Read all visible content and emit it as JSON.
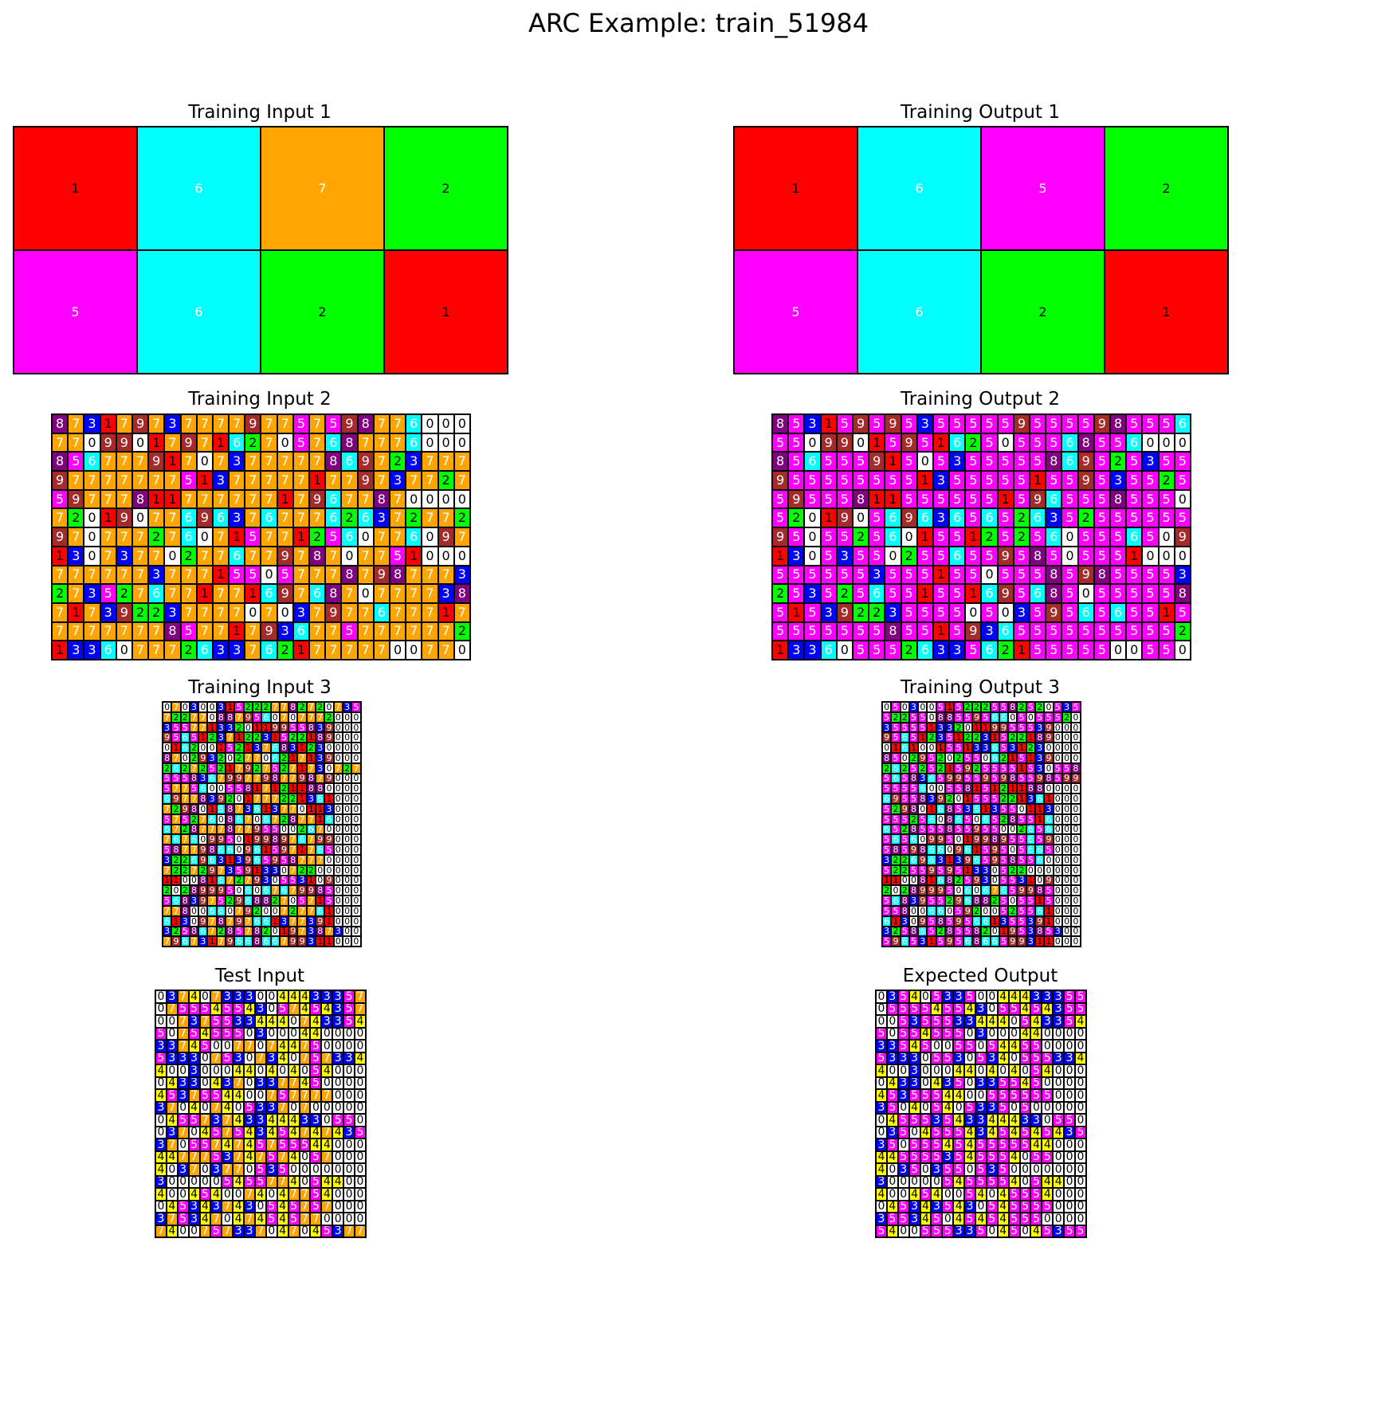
{
  "title": "ARC Example: train_51984",
  "palette": {
    "0": "#ffffff",
    "1": "#ff0000",
    "2": "#00ff00",
    "3": "#0000ff",
    "4": "#ffff00",
    "5": "#ff00ff",
    "6": "#00ffff",
    "7": "#ffa500",
    "8": "#800080",
    "9": "#a52a2a"
  },
  "panels": [
    {
      "title": "Training Input 1",
      "rows": [
        "1672",
        "5621"
      ]
    },
    {
      "title": "Training Output 1",
      "rows": [
        "1652",
        "5621"
      ]
    },
    {
      "title": "Training Input 2",
      "rows": [
        "87317973777797757598776",
        "77099017971627057687776",
        "85677791707377777869723777",
        "97777777513777771779737727",
        "59777811777777179677870",
        "72019077696376777626372772",
        "97077727607157712560776097",
        "13073770277677978707751",
        "77777737771550577787987773",
        "27352767717716976870777738",
        "71739223777707037977677717",
        "77777778577179367757777772",
        "13360777263376217777700770"
      ]
    },
    {
      "title": "Training Output 2",
      "rows": [
        "85315959535555595555985556",
        "55099015951625055568556",
        "85655591505355555869525355",
        "95555555513555551559535525",
        "59555811555555159655585550",
        "52019056963656526352555555",
        "95055256015512525605556509",
        "13053550255655958505551",
        "55555535551550555859855553",
        "25352565515516956850555558",
        "51539223555505035956565515",
        "55555558551593655555555552",
        "13360555263356215555500550"
      ]
    },
    {
      "title": "Training Input 3",
      "rows": [
        "0703003152227782720735",
        "7227708879560707772",
        "3557713320119955839",
        "9565123712231522189",
        "0162001521376831230",
        "8702932027706217139",
        "2627252179275271730727",
        "5558367997798779879",
        "5775600558171211880",
        "6977839201777221361",
        "7298016873613770113",
        "5752760867067287716",
        "6728777877955002670",
        "7676099501998976799",
        "5877986609615971765",
        "3226963139659587770",
        "72272973591330722",
        "11008167279305531090",
        "2028999506067679985",
        "5683975296882705715",
        "7780066079200727761",
        "6130978797661377391",
        "32586728578201973873",
        "7967317966866799311"
      ]
    },
    {
      "title": "Training Output 3",
      "rows": [
        "0503005152225582520535",
        "5225508855956605055520",
        "3555513320119955539",
        "9565123512231522189",
        "0161001551336531230",
        "8502952025506215139",
        "2625252159255551530558",
        "5658365995595985598599",
        "5555600558151211880",
        "6955839201555221361",
        "5298016853613550113",
        "5552560865065285516",
        "6528555855955002656",
        "5656099501998955659",
        "5859866096159505665",
        "3226963139659585560",
        "5225595951330522",
        "11008168259305531090",
        "2028999506067659985",
        "5683955296882505515",
        "5580066059200525561",
        "6130958595661355391",
        "32586528558201953853",
        "5965315956866599311"
      ]
    },
    {
      "title": "Test Input",
      "rows": [
        "0374073330044433357",
        "0755545543057454357",
        "0073755334440743354",
        "5075455503000440",
        "3374500770744750",
        "5333075307340757334",
        "4003000440404054",
        "04330437033774500",
        "4537554400757777",
        "3704074053370700",
        "0455737433444330550",
        "0370457543454747435",
        "3705574745755544",
        "4477753747574057",
        "40370377053500",
        "3000005455774054400",
        "4004540074047754",
        "0453437430545757",
        "3753470474545770",
        "7400757337047045377"
      ]
    },
    {
      "title": "Expected Output",
      "rows": [
        "0354053350044433355",
        "0555545543055454355",
        "0053555334440543354",
        "5055455503000440",
        "3354500550544550",
        "5333055305340555334",
        "4003000440404054",
        "04330435033554500",
        "4535554400555555",
        "3504054053350500",
        "0455535433444330550",
        "0350455543454545435",
        "3505554545555544",
        "4455553545554055",
        "40350355053500",
        "3000005455554054400",
        "4004540054045554",
        "0453435430545555",
        "3553450454545550",
        "5400555335045045355"
      ]
    }
  ]
}
